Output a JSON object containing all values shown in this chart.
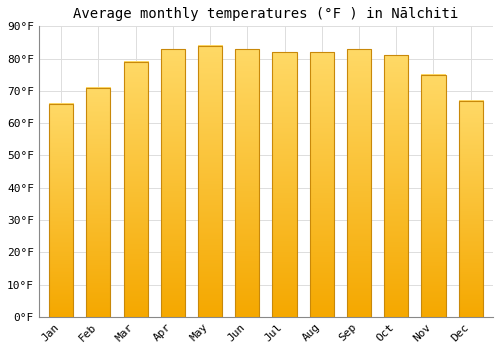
{
  "title": "Average monthly temperatures (°F ) in Nālchiti",
  "months": [
    "Jan",
    "Feb",
    "Mar",
    "Apr",
    "May",
    "Jun",
    "Jul",
    "Aug",
    "Sep",
    "Oct",
    "Nov",
    "Dec"
  ],
  "values": [
    66,
    71,
    79,
    83,
    84,
    83,
    82,
    82,
    83,
    81,
    75,
    67
  ],
  "bar_color_bottom": "#F5A800",
  "bar_color_top": "#FFD966",
  "bar_edge_color": "#C8880A",
  "ylim": [
    0,
    90
  ],
  "yticks": [
    0,
    10,
    20,
    30,
    40,
    50,
    60,
    70,
    80,
    90
  ],
  "ytick_labels": [
    "0°F",
    "10°F",
    "20°F",
    "30°F",
    "40°F",
    "50°F",
    "60°F",
    "70°F",
    "80°F",
    "90°F"
  ],
  "background_color": "#FFFFFF",
  "grid_color": "#DDDDDD",
  "title_fontsize": 10,
  "tick_fontsize": 8,
  "bar_width": 0.65
}
